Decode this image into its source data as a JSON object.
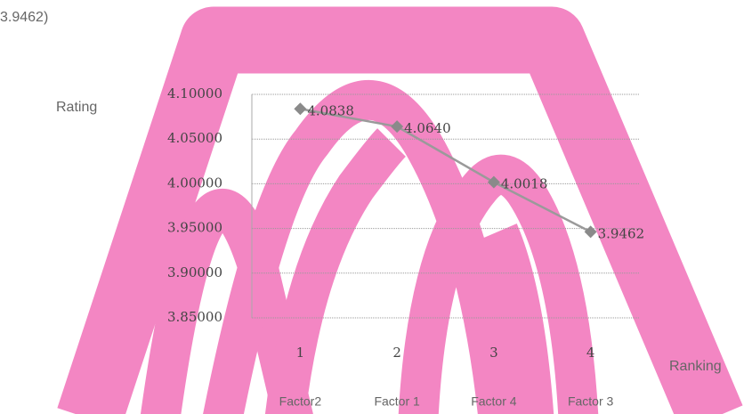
{
  "top_text": "3.9462)",
  "chart_data": {
    "type": "line",
    "y_label": "Rating",
    "x_label": "Ranking",
    "categories": [
      "1",
      "2",
      "3",
      "4"
    ],
    "category_names": [
      "Factor2",
      "Factor 1",
      "Factor 4",
      "Factor 3"
    ],
    "values": [
      4.0838,
      4.064,
      4.0018,
      3.9462
    ],
    "value_labels": [
      "4.0838",
      "4.0640",
      "4.0018",
      "3.9462"
    ],
    "color": "#9a9a9a",
    "ylim": [
      3.85,
      4.1
    ],
    "yticks": [
      {
        "value": 3.85,
        "label": "3.85000"
      },
      {
        "value": 3.9,
        "label": "3.90000"
      },
      {
        "value": 3.95,
        "label": "3.95000"
      },
      {
        "value": 4.0,
        "label": "4.00000"
      },
      {
        "value": 4.05,
        "label": "4.05000"
      },
      {
        "value": 4.1,
        "label": "4.10000"
      }
    ],
    "grid": true
  }
}
